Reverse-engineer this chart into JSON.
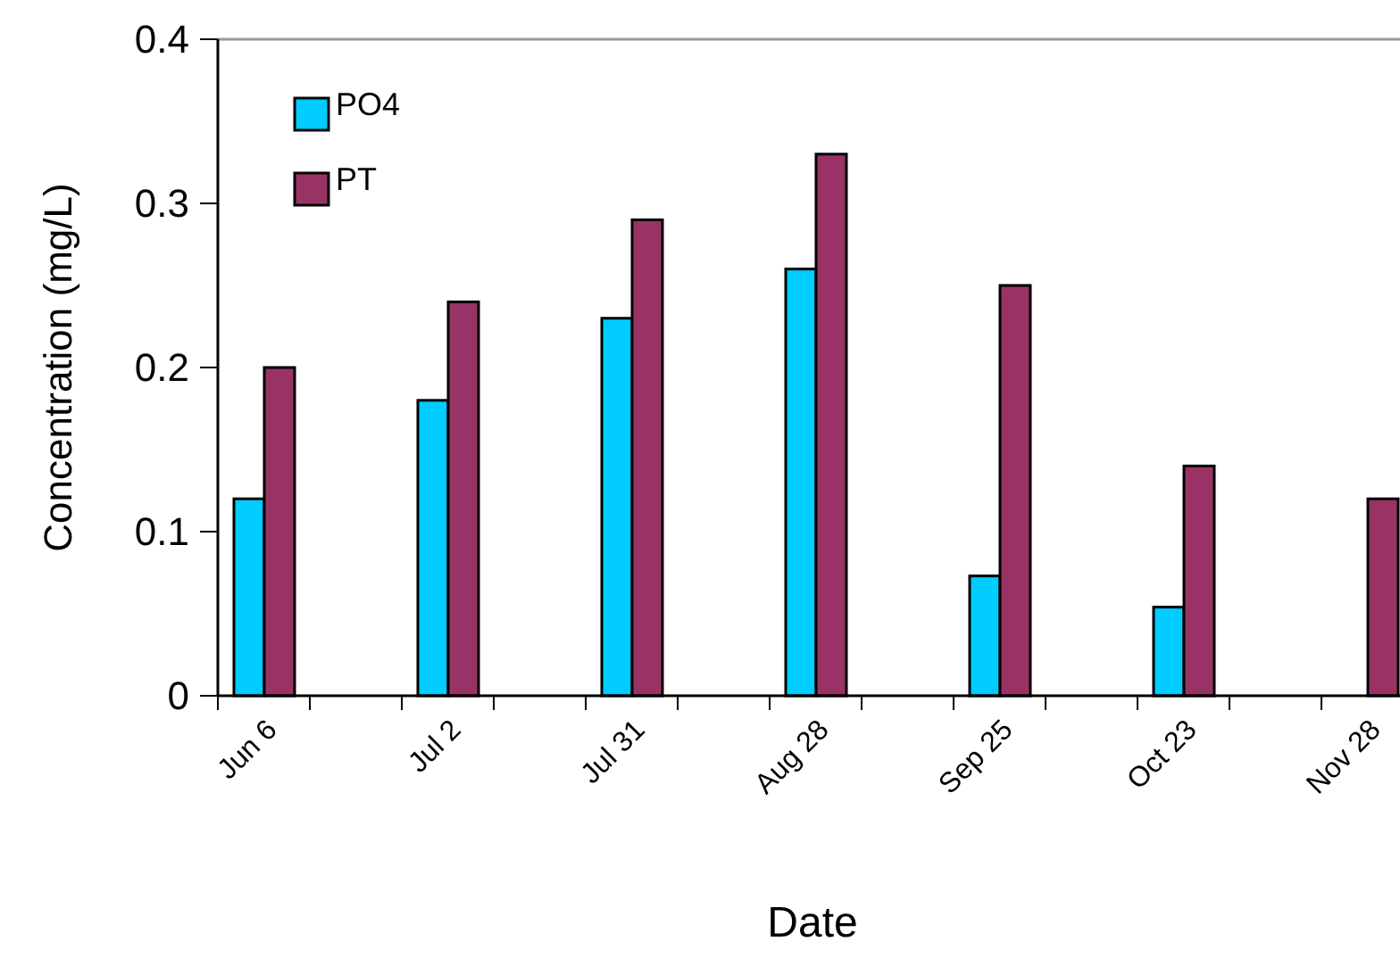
{
  "chart_data": {
    "type": "bar",
    "xlabel": "Date",
    "ylabel": "Concentration (mg/L)",
    "categories": [
      "Jun 6",
      "Jul 2",
      "Jul 31",
      "Aug 28",
      "Sep 25",
      "Oct 23",
      "Nov 28"
    ],
    "series": [
      {
        "name": "PO4",
        "color": "#00ccff",
        "values": [
          0.12,
          0.18,
          0.23,
          0.26,
          0.073,
          0.054,
          null
        ]
      },
      {
        "name": "PT",
        "color": "#993366",
        "values": [
          0.2,
          0.24,
          0.29,
          0.33,
          0.25,
          0.14,
          0.12
        ]
      }
    ],
    "ylim": [
      0,
      0.4
    ],
    "yticks": [
      0,
      0.1,
      0.2,
      0.3,
      0.4
    ],
    "legend": "top left"
  }
}
